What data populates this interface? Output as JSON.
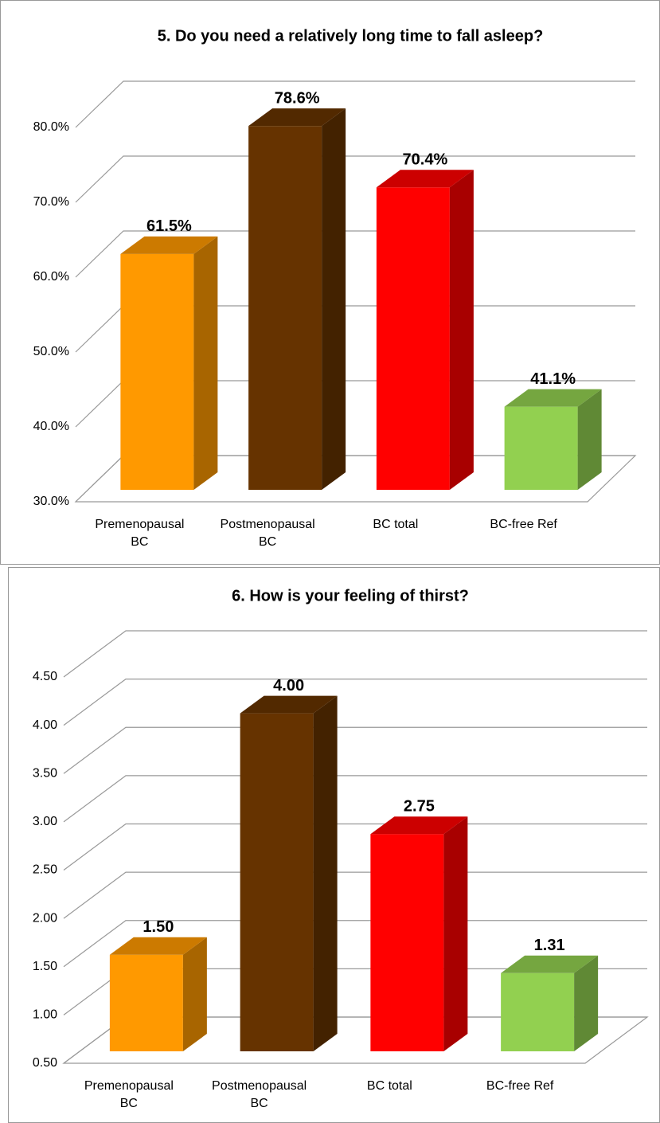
{
  "chart_data": [
    {
      "type": "bar3d",
      "title": "5. Do you need a relatively long time to fall asleep?",
      "categories": [
        "Premenopausal BC",
        "Postmenopausal BC",
        "BC total",
        "BC-free Ref"
      ],
      "values": [
        61.5,
        78.6,
        70.4,
        41.1
      ],
      "value_labels": [
        "61.5%",
        "78.6%",
        "70.4%",
        "41.1%"
      ],
      "colors": [
        "#ff9900",
        "#663300",
        "#ff0000",
        "#92d050"
      ],
      "ylim": [
        30,
        80
      ],
      "yticks": [
        {
          "value": 30,
          "label": "30.0%"
        },
        {
          "value": 40,
          "label": "40.0%"
        },
        {
          "value": 50,
          "label": "50.0%"
        },
        {
          "value": 60,
          "label": "60.0%"
        },
        {
          "value": 70,
          "label": "70.0%"
        },
        {
          "value": 80,
          "label": "80.0%"
        }
      ],
      "grid": true
    },
    {
      "type": "bar3d",
      "title": "6. How is your feeling of thirst?",
      "categories": [
        "Premenopausal BC",
        "Postmenopausal BC",
        "BC total",
        "BC-free Ref"
      ],
      "values": [
        1.5,
        4.0,
        2.75,
        1.31
      ],
      "value_labels": [
        "1.50",
        "4.00",
        "2.75",
        "1.31"
      ],
      "colors": [
        "#ff9900",
        "#663300",
        "#ff0000",
        "#92d050"
      ],
      "ylim": [
        0.5,
        4.5
      ],
      "yticks": [
        {
          "value": 0.5,
          "label": "0.50"
        },
        {
          "value": 1,
          "label": "1.00"
        },
        {
          "value": 1.5,
          "label": "1.50"
        },
        {
          "value": 2,
          "label": "2.00"
        },
        {
          "value": 2.5,
          "label": "2.50"
        },
        {
          "value": 3,
          "label": "3.00"
        },
        {
          "value": 3.5,
          "label": "3.50"
        },
        {
          "value": 4,
          "label": "4.00"
        },
        {
          "value": 4.5,
          "label": "4.50"
        }
      ],
      "grid": true
    }
  ]
}
